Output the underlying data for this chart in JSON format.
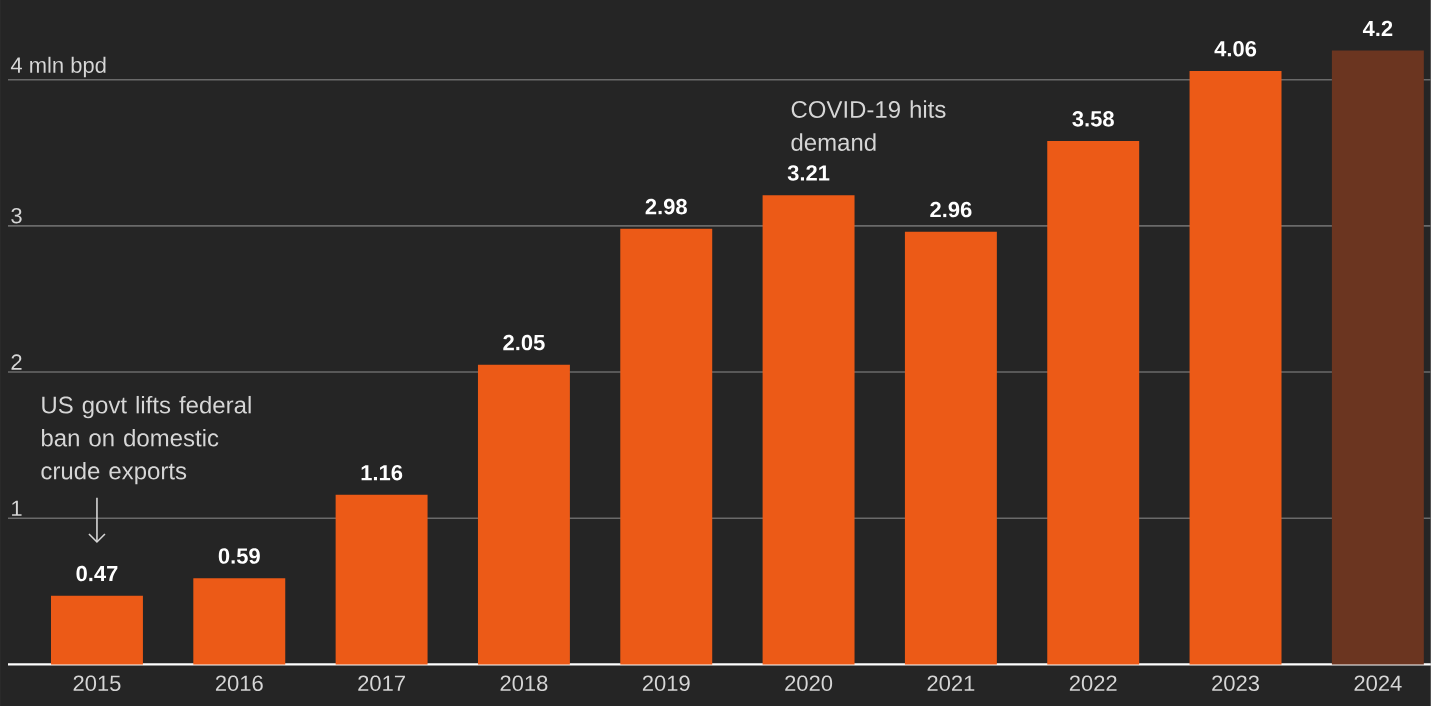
{
  "chart_data": {
    "type": "bar",
    "categories": [
      "2015",
      "2016",
      "2017",
      "2018",
      "2019",
      "2020",
      "2021",
      "2022",
      "2023",
      "2024"
    ],
    "values": [
      0.47,
      0.59,
      1.16,
      2.05,
      2.98,
      3.21,
      2.96,
      3.58,
      4.06,
      4.2
    ],
    "colors": [
      "#ec5a17",
      "#ec5a17",
      "#ec5a17",
      "#ec5a17",
      "#ec5a17",
      "#ec5a17",
      "#ec5a17",
      "#ec5a17",
      "#ec5a17",
      "#6b3520"
    ],
    "ylim": [
      0,
      4.545
    ],
    "yticks": [
      1,
      2,
      3,
      {
        "value": 4,
        "label": "4 mln bpd"
      }
    ],
    "grid": "y",
    "data_labels": true,
    "annotations": [
      "US govt lifts federal ban on domestic crude exports",
      {
        "text": "COVID-19 hits demand",
        "x": "2020",
        "y": 3.21
      }
    ]
  }
}
